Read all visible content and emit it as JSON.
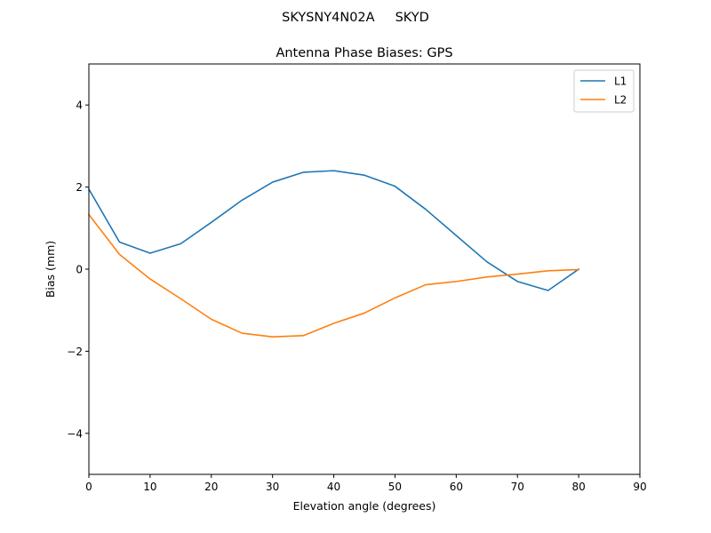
{
  "figure": {
    "suptitle": "SKYSNY4N02A     SKYD"
  },
  "chart_data": {
    "type": "line",
    "title": "Antenna Phase Biases: GPS",
    "xlabel": "Elevation angle (degrees)",
    "ylabel": "Bias (mm)",
    "xlim": [
      0,
      90
    ],
    "ylim": [
      -5,
      5
    ],
    "xticks": [
      0,
      10,
      20,
      30,
      40,
      50,
      60,
      70,
      80,
      90
    ],
    "yticks": [
      -4,
      -2,
      0,
      2,
      4
    ],
    "xtick_labels": [
      "0",
      "10",
      "20",
      "30",
      "40",
      "50",
      "60",
      "70",
      "80",
      "90"
    ],
    "ytick_labels": [
      "−4",
      "−2",
      "0",
      "2",
      "4"
    ],
    "grid": false,
    "legend_position": "top-right",
    "x": [
      0,
      5,
      10,
      15,
      20,
      25,
      30,
      35,
      40,
      45,
      50,
      55,
      60,
      65,
      70,
      75,
      80
    ],
    "series": [
      {
        "name": "L1",
        "color": "#1f77b4",
        "values": [
          1.95,
          0.66,
          0.39,
          0.62,
          1.14,
          1.68,
          2.12,
          2.36,
          2.4,
          2.29,
          2.02,
          1.46,
          0.82,
          0.18,
          -0.3,
          -0.52,
          0.0
        ]
      },
      {
        "name": "L2",
        "color": "#ff7f0e",
        "values": [
          1.33,
          0.36,
          -0.24,
          -0.72,
          -1.22,
          -1.56,
          -1.65,
          -1.62,
          -1.32,
          -1.07,
          -0.7,
          -0.38,
          -0.3,
          -0.19,
          -0.12,
          -0.04,
          -0.01
        ]
      }
    ]
  }
}
